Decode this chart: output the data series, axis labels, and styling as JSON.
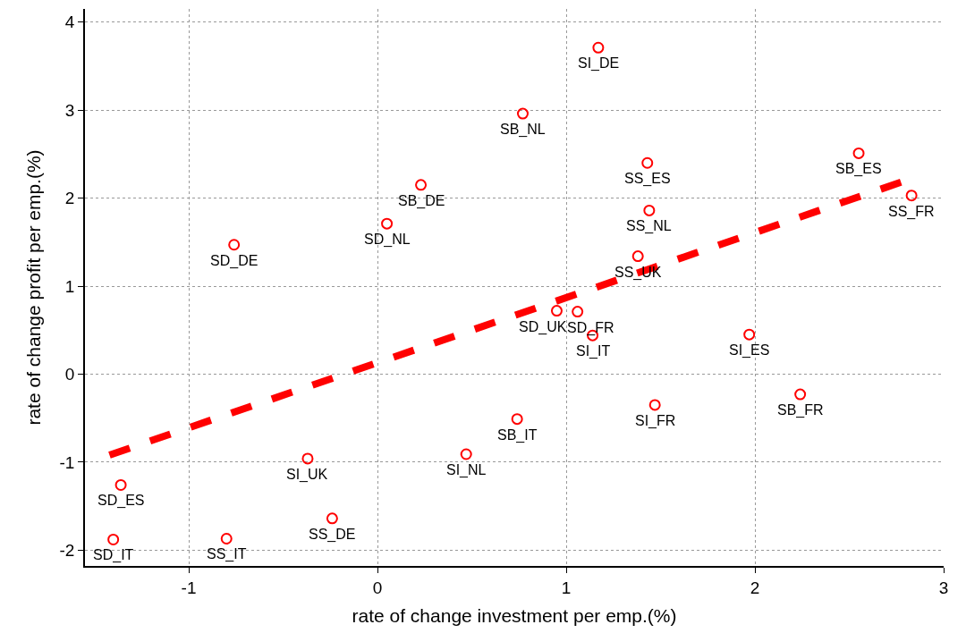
{
  "chart_data": {
    "type": "scatter",
    "xlabel": "rate of change investment per emp.(%)",
    "ylabel": "rate of change profit per emp.(%)",
    "xlim": [
      -1.55,
      3.0
    ],
    "ylim": [
      -2.18,
      4.15
    ],
    "xticks": [
      -1,
      0,
      1,
      2,
      3
    ],
    "yticks": [
      -2,
      -1,
      0,
      1,
      2,
      3,
      4
    ],
    "grid": true,
    "series": [
      {
        "color": "#ff0000",
        "marker": "circle",
        "x": [
          1.17,
          0.77,
          1.43,
          1.44,
          2.55,
          2.83,
          0.23,
          0.05,
          -0.76,
          1.38,
          0.95,
          1.06,
          1.14,
          1.97,
          1.47,
          2.24,
          0.74,
          0.47,
          -0.37,
          -0.24,
          -0.8,
          -1.36,
          -1.4
        ],
        "values": [
          3.71,
          2.96,
          2.4,
          1.86,
          2.51,
          2.03,
          2.15,
          1.71,
          1.47,
          1.34,
          0.72,
          0.71,
          0.44,
          0.45,
          -0.35,
          -0.23,
          -0.51,
          -0.91,
          -0.96,
          -1.64,
          -1.87,
          -1.26,
          -1.88
        ]
      },
      {
        "type": "line",
        "color": "#ff0000",
        "line_style": "dashed",
        "x": [
          -1.42,
          2.8
        ],
        "values": [
          -0.92,
          2.2
        ]
      }
    ],
    "annotations": [
      {
        "text": "SI_DE",
        "x": 1.17,
        "y": 3.71
      },
      {
        "text": "SB_NL",
        "x": 0.77,
        "y": 2.96
      },
      {
        "text": "SS_ES",
        "x": 1.43,
        "y": 2.4
      },
      {
        "text": "SS_NL",
        "x": 1.44,
        "y": 1.86
      },
      {
        "text": "SB_ES",
        "x": 2.55,
        "y": 2.51
      },
      {
        "text": "SS_FR",
        "x": 2.83,
        "y": 2.03
      },
      {
        "text": "SB_DE",
        "x": 0.23,
        "y": 2.15
      },
      {
        "text": "SD_NL",
        "x": 0.05,
        "y": 1.71
      },
      {
        "text": "SD_DE",
        "x": -0.76,
        "y": 1.47
      },
      {
        "text": "SS_UK",
        "x": 1.38,
        "y": 1.34
      },
      {
        "text": "SD_UK",
        "x": 0.95,
        "y": 0.72
      },
      {
        "text": "SD_FR",
        "x": 1.06,
        "y": 0.71
      },
      {
        "text": "SI_IT",
        "x": 1.14,
        "y": 0.44
      },
      {
        "text": "SI_ES",
        "x": 1.97,
        "y": 0.45
      },
      {
        "text": "SI_FR",
        "x": 1.47,
        "y": -0.35
      },
      {
        "text": "SB_FR",
        "x": 2.24,
        "y": -0.23
      },
      {
        "text": "SB_IT",
        "x": 0.74,
        "y": -0.51
      },
      {
        "text": "SI_NL",
        "x": 0.47,
        "y": -0.91
      },
      {
        "text": "SI_UK",
        "x": -0.37,
        "y": -0.96
      },
      {
        "text": "SS_DE",
        "x": -0.24,
        "y": -1.64
      },
      {
        "text": "SS_IT",
        "x": -0.8,
        "y": -1.87
      },
      {
        "text": "SD_ES",
        "x": -1.36,
        "y": -1.26
      },
      {
        "text": "SD_IT",
        "x": -1.4,
        "y": -1.88
      }
    ]
  }
}
